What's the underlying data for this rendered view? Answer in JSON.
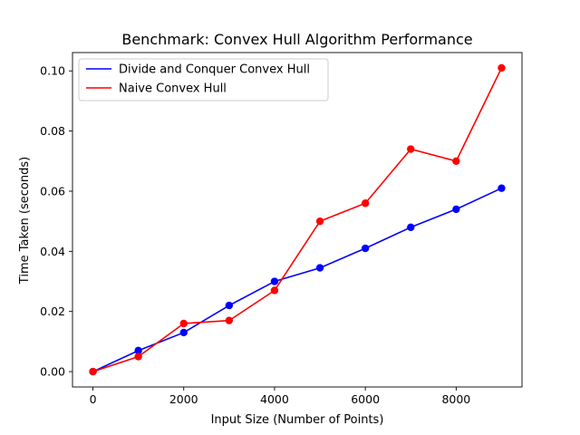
{
  "chart_data": {
    "type": "line",
    "title": "Benchmark: Convex Hull Algorithm Performance",
    "xlabel": "Input Size (Number of Points)",
    "ylabel": "Time Taken (seconds)",
    "x": [
      0,
      1000,
      2000,
      3000,
      4000,
      5000,
      6000,
      7000,
      8000,
      9000
    ],
    "xlim": [
      -450,
      9450
    ],
    "ylim": [
      -0.0051,
      0.1061
    ],
    "xticks": [
      0,
      2000,
      4000,
      6000,
      8000
    ],
    "xtick_labels": [
      "0",
      "2000",
      "4000",
      "6000",
      "8000"
    ],
    "yticks": [
      0.0,
      0.02,
      0.04,
      0.06,
      0.08,
      0.1
    ],
    "ytick_labels": [
      "0.00",
      "0.02",
      "0.04",
      "0.06",
      "0.08",
      "0.10"
    ],
    "grid": false,
    "legend_position": "top-left",
    "series": [
      {
        "name": "Divide and Conquer Convex Hull",
        "color": "#0000ff",
        "marker": "circle",
        "values": [
          0.0,
          0.007,
          0.013,
          0.022,
          0.03,
          0.0345,
          0.041,
          0.048,
          0.054,
          0.061
        ]
      },
      {
        "name": "Naive Convex Hull",
        "color": "#ff0000",
        "marker": "circle",
        "values": [
          0.0,
          0.005,
          0.016,
          0.017,
          0.027,
          0.05,
          0.056,
          0.074,
          0.07,
          0.101
        ]
      }
    ]
  }
}
